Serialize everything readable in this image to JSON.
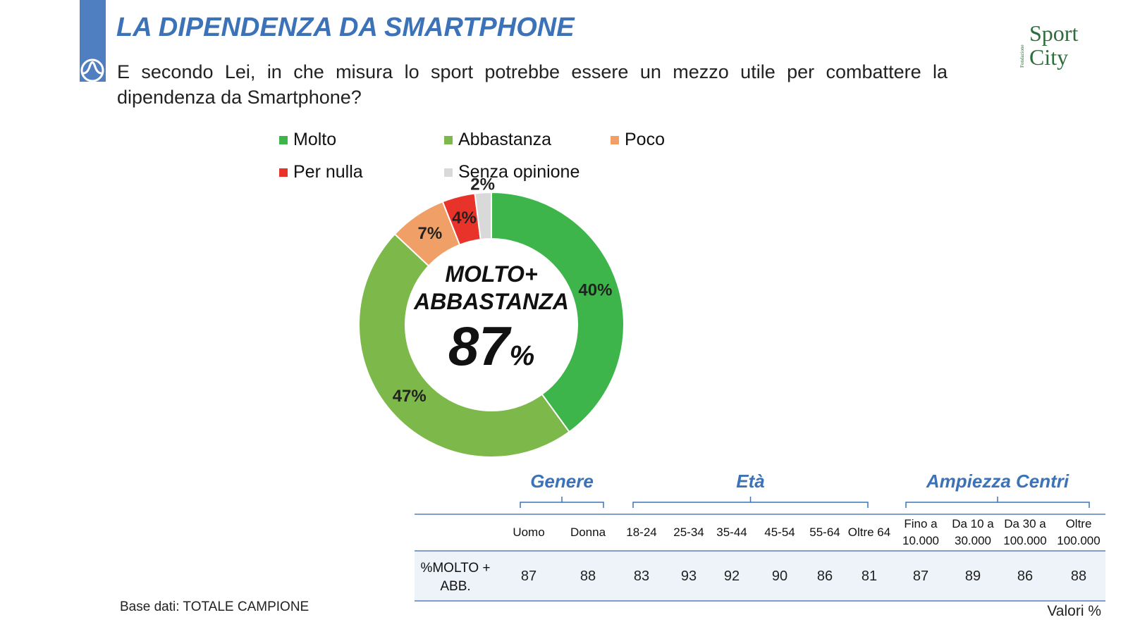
{
  "header": {
    "title": "LA DIPENDENZA DA SMARTPHONE",
    "question": "E secondo Lei, in che misura lo sport potrebbe essere un mezzo utile per combattere la dipendenza da Smartphone?"
  },
  "logo": {
    "org": "Fondazione",
    "line1": "Sport",
    "line2": "City"
  },
  "chart_data": {
    "type": "pie",
    "donut": true,
    "categories": [
      "Molto",
      "Abbastanza",
      "Poco",
      "Per nulla",
      "Senza opinione"
    ],
    "values": [
      40,
      47,
      7,
      4,
      2
    ],
    "value_labels": [
      "40%",
      "47%",
      "7%",
      "4%",
      "2%"
    ],
    "colors": [
      "#3db54a",
      "#7cb84a",
      "#f0a066",
      "#e8332a",
      "#d9d9d9"
    ],
    "center_label": "MOLTO+ ABBASTANZA",
    "center_value": 87,
    "center_unit": "%"
  },
  "table": {
    "row_label": "%MOLTO + ABB.",
    "groups": [
      {
        "label": "Genere",
        "columns": [
          "Uomo",
          "Donna"
        ],
        "values": [
          87,
          88
        ]
      },
      {
        "label": "Età",
        "columns": [
          "18-24",
          "25-34",
          "35-44",
          "45-54",
          "55-64",
          "Oltre 64"
        ],
        "values": [
          83,
          93,
          92,
          90,
          86,
          81
        ]
      },
      {
        "label": "Ampiezza Centri",
        "columns": [
          "Fino a 10.000",
          "Da 10 a 30.000",
          "Da 30 a 100.000",
          "Oltre 100.000"
        ],
        "values": [
          87,
          89,
          86,
          88
        ]
      }
    ]
  },
  "footer": {
    "base": "Base dati: TOTALE CAMPIONE",
    "units": "Valori %"
  }
}
